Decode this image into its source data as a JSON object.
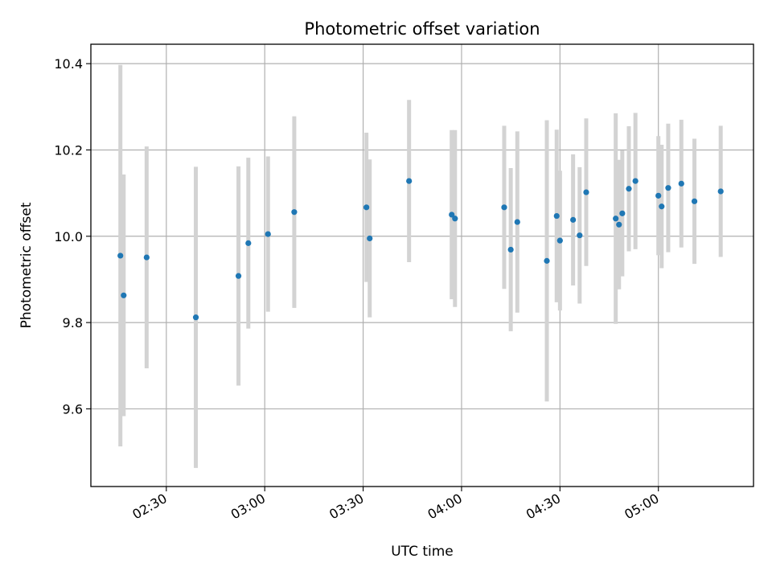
{
  "chart_data": {
    "type": "scatter",
    "title": "Photometric offset variation",
    "xlabel": "UTC time",
    "ylabel": "Photometric offset",
    "x_unit": "UTC time (HH:MM)",
    "xlim": [
      "02:07",
      "05:29"
    ],
    "ylim": [
      9.42,
      10.445
    ],
    "x_ticks": [
      "02:30",
      "03:00",
      "03:30",
      "04:00",
      "04:30",
      "05:00"
    ],
    "y_ticks": [
      "9.6",
      "9.8",
      "10.0",
      "10.2",
      "10.4"
    ],
    "grid": true,
    "legend": "none",
    "colors": {
      "points": "#1f77b4",
      "errorbars": "#d3d3d3",
      "grid": "#b0b0b0"
    },
    "series": [
      {
        "points": [
          {
            "x": "02:16",
            "y": 9.955,
            "err": 0.442
          },
          {
            "x": "02:17",
            "y": 9.863,
            "err": 0.28
          },
          {
            "x": "02:24",
            "y": 9.951,
            "err": 0.257
          },
          {
            "x": "02:39",
            "y": 9.812,
            "err": 0.349
          },
          {
            "x": "02:52",
            "y": 9.908,
            "err": 0.254
          },
          {
            "x": "02:55",
            "y": 9.984,
            "err": 0.198
          },
          {
            "x": "03:01",
            "y": 10.005,
            "err": 0.18
          },
          {
            "x": "03:09",
            "y": 10.056,
            "err": 0.222
          },
          {
            "x": "03:31",
            "y": 10.067,
            "err": 0.173
          },
          {
            "x": "03:32",
            "y": 9.995,
            "err": 0.183
          },
          {
            "x": "03:44",
            "y": 10.128,
            "err": 0.188
          },
          {
            "x": "03:57",
            "y": 10.05,
            "err": 0.196
          },
          {
            "x": "03:58",
            "y": 10.041,
            "err": 0.205
          },
          {
            "x": "04:13",
            "y": 10.067,
            "err": 0.189
          },
          {
            "x": "04:15",
            "y": 9.969,
            "err": 0.189
          },
          {
            "x": "04:17",
            "y": 10.033,
            "err": 0.21
          },
          {
            "x": "04:26",
            "y": 9.943,
            "err": 0.326
          },
          {
            "x": "04:29",
            "y": 10.047,
            "err": 0.2
          },
          {
            "x": "04:30",
            "y": 9.99,
            "err": 0.162
          },
          {
            "x": "04:34",
            "y": 10.038,
            "err": 0.152
          },
          {
            "x": "04:36",
            "y": 10.002,
            "err": 0.158
          },
          {
            "x": "04:38",
            "y": 10.102,
            "err": 0.171
          },
          {
            "x": "04:47",
            "y": 10.041,
            "err": 0.244
          },
          {
            "x": "04:48",
            "y": 10.027,
            "err": 0.15
          },
          {
            "x": "04:49",
            "y": 10.053,
            "err": 0.146
          },
          {
            "x": "04:51",
            "y": 10.11,
            "err": 0.145
          },
          {
            "x": "04:53",
            "y": 10.128,
            "err": 0.158
          },
          {
            "x": "05:00",
            "y": 10.094,
            "err": 0.138
          },
          {
            "x": "05:01",
            "y": 10.069,
            "err": 0.143
          },
          {
            "x": "05:03",
            "y": 10.112,
            "err": 0.149
          },
          {
            "x": "05:07",
            "y": 10.122,
            "err": 0.148
          },
          {
            "x": "05:11",
            "y": 10.081,
            "err": 0.145
          },
          {
            "x": "05:19",
            "y": 10.104,
            "err": 0.152
          }
        ]
      }
    ]
  }
}
